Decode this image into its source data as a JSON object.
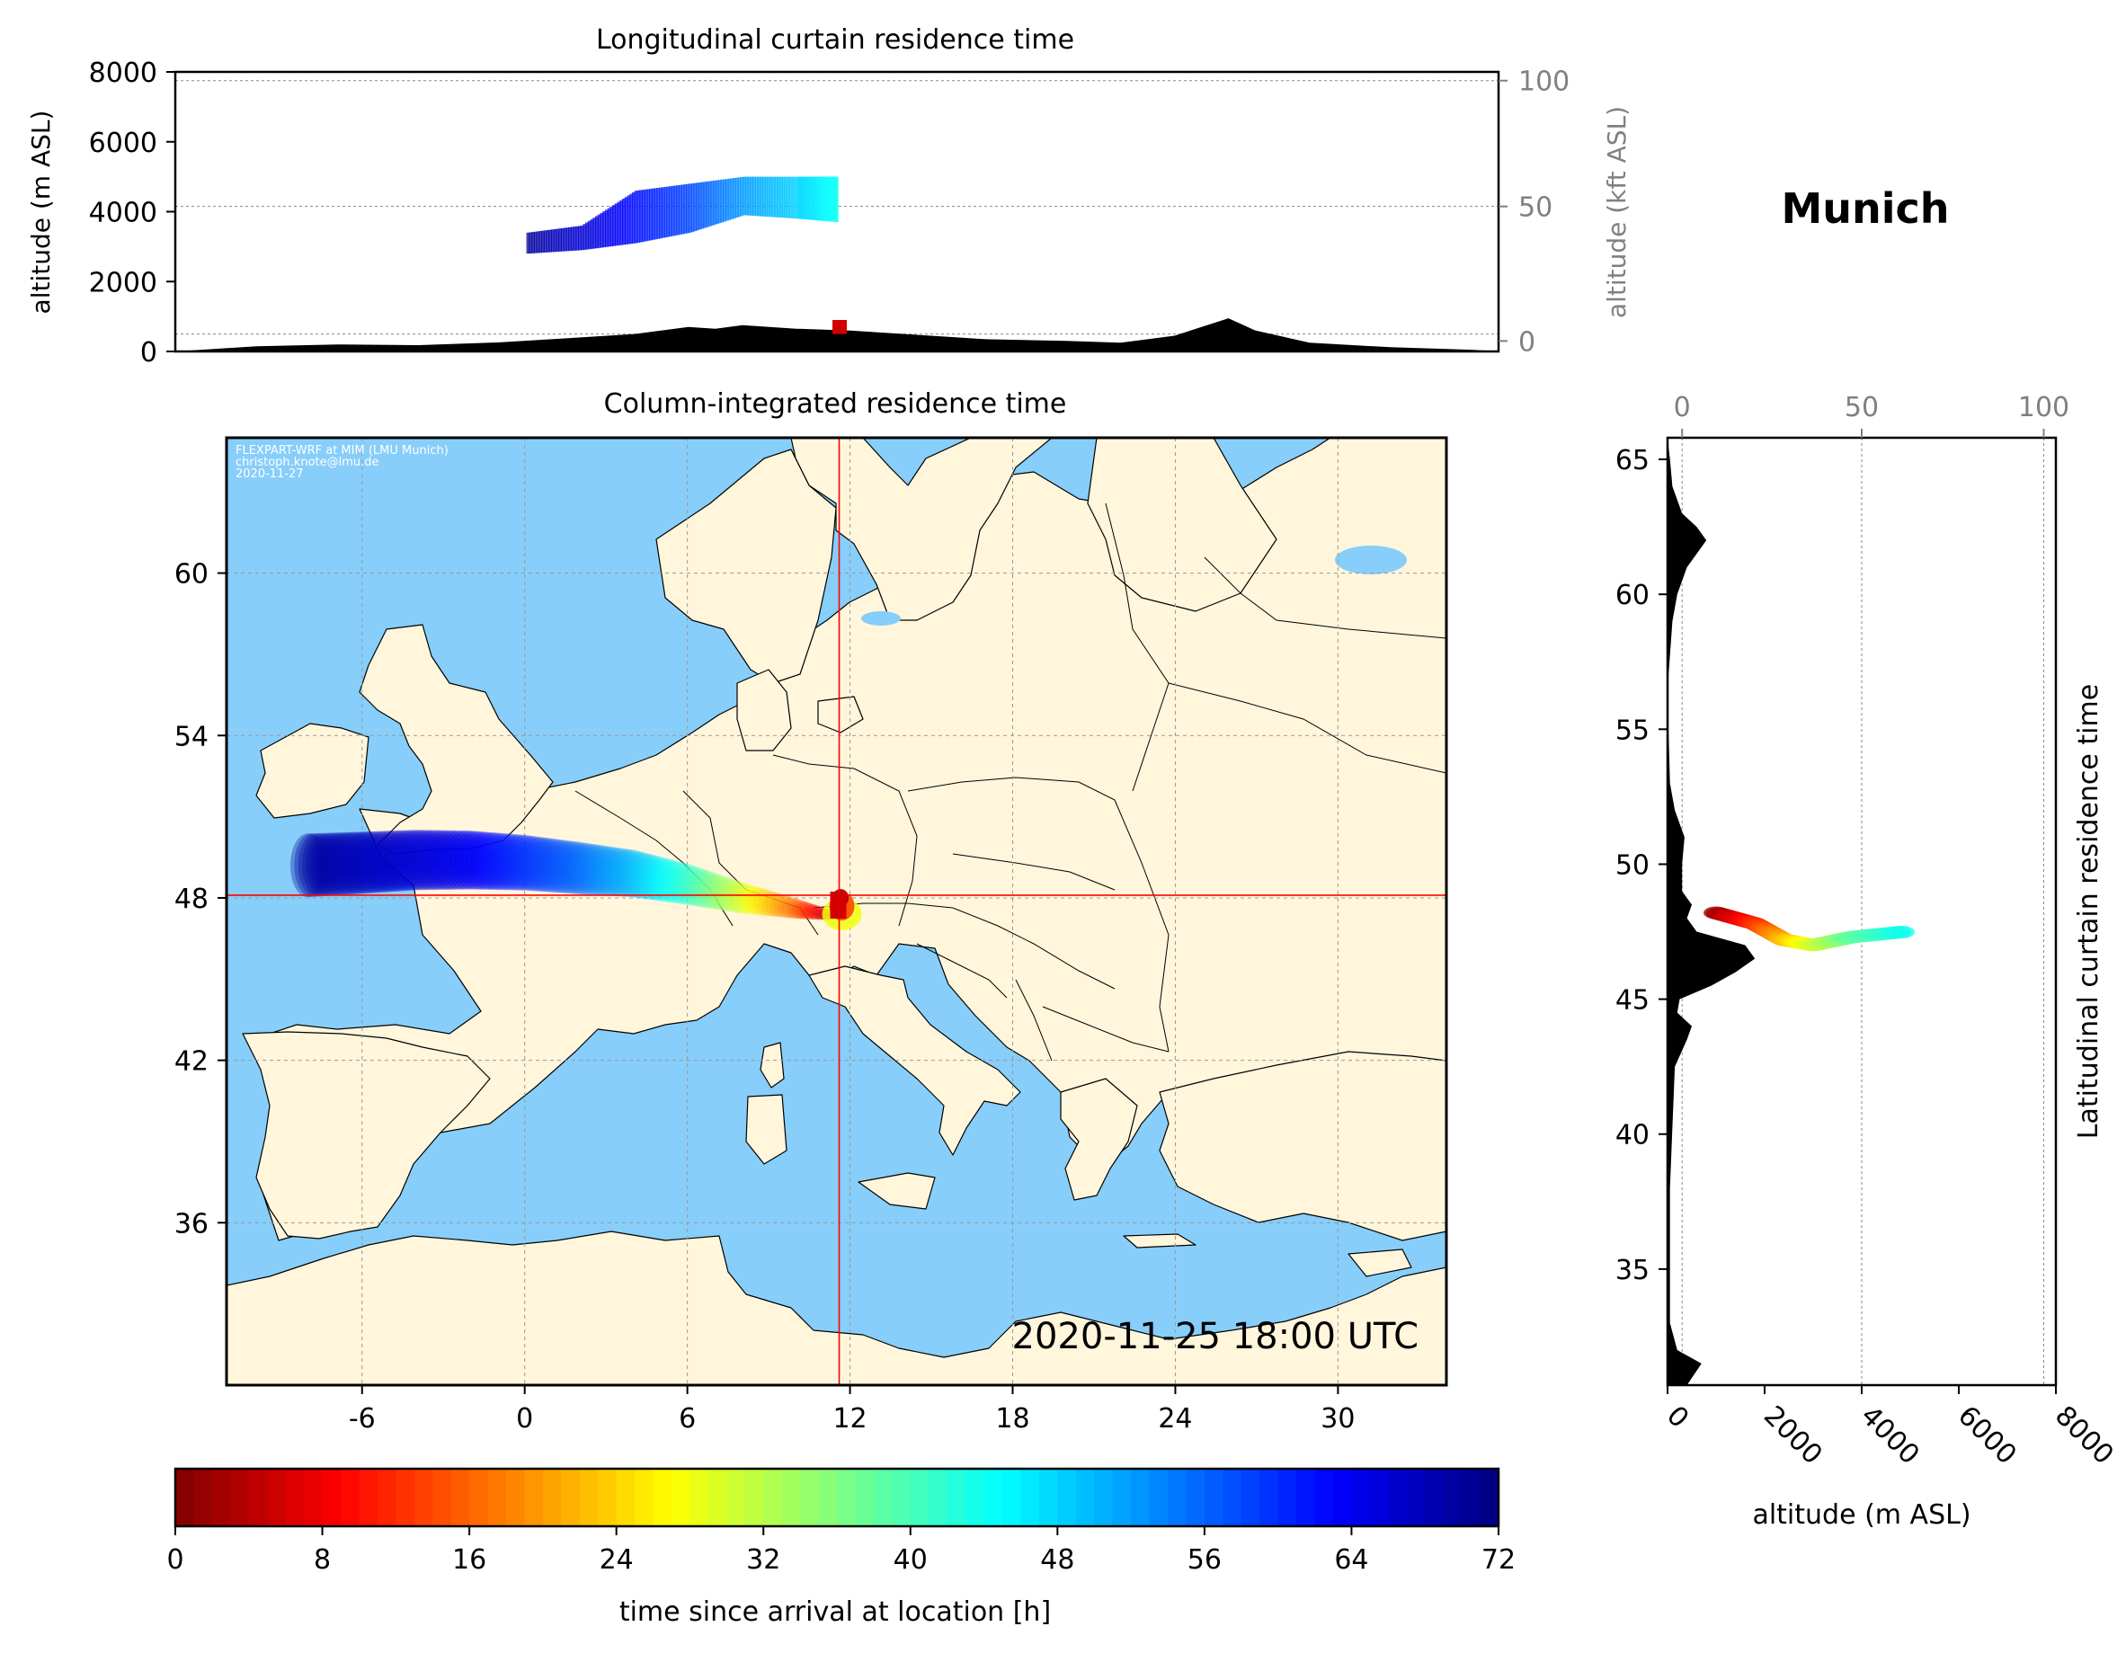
{
  "location_title": "Munich",
  "timestamp": "2020-11-25 18:00 UTC",
  "credits": [
    "FLEXPART-WRF at MIM (LMU Munich)",
    "christoph.knote@lmu.de",
    "2020-11-27"
  ],
  "colors": {
    "ocean": "#87CEFA",
    "land": "#FFF6DC",
    "terrain": "#000000",
    "crosshair": "#FF0000",
    "secondary_axis": "#808080"
  },
  "colormap": "jet (reversed)",
  "chart_data": [
    {
      "id": "longitudinal",
      "type": "area",
      "title": "Longitudinal curtain residence time",
      "ylabel": "altitude (m ASL)",
      "ylabel_right": "altitude (kft ASL)",
      "ylim": [
        0,
        8000
      ],
      "yticks": [
        "0",
        "2000",
        "4000",
        "6000",
        "8000"
      ],
      "yticks_right": [
        "0",
        "50",
        "100"
      ],
      "grid": true,
      "terrain_profile": {
        "lon": [
          -13,
          -10,
          -7,
          -4,
          -1,
          2,
          4,
          6,
          7,
          8,
          10,
          12,
          14,
          17,
          20,
          22,
          24,
          25,
          26,
          27,
          29,
          32,
          35
        ],
        "alt_m": [
          0,
          150,
          200,
          180,
          260,
          400,
          500,
          700,
          650,
          750,
          650,
          600,
          500,
          350,
          300,
          250,
          450,
          700,
          950,
          600,
          250,
          120,
          50
        ]
      },
      "plume": {
        "lon": [
          0,
          2,
          4,
          6,
          8,
          10,
          11.5
        ],
        "alt_low_m": [
          2800,
          2900,
          3100,
          3400,
          3900,
          3800,
          3700
        ],
        "alt_high_m": [
          3400,
          3600,
          4600,
          4800,
          5000,
          5000,
          5000
        ],
        "hours": [
          70,
          66,
          62,
          58,
          52,
          48,
          44
        ]
      },
      "arrival": {
        "lon": 11.6,
        "alt_m": 500
      }
    },
    {
      "id": "map",
      "type": "scatter",
      "title": "Column-integrated residence time",
      "xticks": [
        "-6",
        "0",
        "6",
        "12",
        "18",
        "24",
        "30"
      ],
      "yticks": [
        "36",
        "42",
        "48",
        "54",
        "60"
      ],
      "xlim": [
        -11,
        34
      ],
      "ylim": [
        30,
        65
      ],
      "grid": true,
      "release": {
        "lon": 11.6,
        "lat": 48.1
      },
      "trajectory": {
        "lon": [
          11.6,
          10,
          8,
          6,
          4,
          2,
          0,
          -2,
          -4,
          -6,
          -8
        ],
        "lat": [
          47.3,
          47.6,
          48.0,
          48.5,
          48.9,
          49.1,
          49.3,
          49.4,
          49.4,
          49.3,
          49.2
        ],
        "hours": [
          0,
          16,
          30,
          42,
          50,
          56,
          60,
          64,
          66,
          68,
          70
        ]
      }
    },
    {
      "id": "latitudinal",
      "type": "area",
      "title": "Latitudinal curtain residence time",
      "xlabel": "altitude (m ASL)",
      "xticks": [
        "0",
        "2000",
        "4000",
        "6000",
        "8000"
      ],
      "xticks_top": [
        "0",
        "50",
        "100"
      ],
      "yticks": [
        "35",
        "40",
        "45",
        "50",
        "55",
        "60",
        "65"
      ],
      "ylim": [
        30.7,
        65.8
      ],
      "grid": true,
      "terrain_profile": {
        "lat": [
          30.7,
          31.5,
          32,
          33,
          38,
          42.5,
          43.5,
          44,
          44.5,
          45,
          45.5,
          46,
          46.5,
          47,
          47.5,
          48,
          48.5,
          49,
          50,
          51,
          52,
          53,
          55,
          57,
          59,
          60,
          61,
          62,
          62.5,
          63,
          64,
          65,
          65.8
        ],
        "alt_m": [
          400,
          700,
          200,
          50,
          50,
          150,
          400,
          500,
          200,
          250,
          900,
          1400,
          1800,
          1600,
          600,
          400,
          500,
          300,
          300,
          350,
          150,
          50,
          20,
          20,
          100,
          200,
          400,
          800,
          600,
          300,
          100,
          50,
          0
        ]
      },
      "plume": {
        "lat": [
          48.2,
          47.8,
          47.2,
          47.0,
          47.3,
          47.5
        ],
        "alt_m": [
          1000,
          1800,
          2400,
          3000,
          3800,
          4900
        ],
        "hours": [
          2,
          12,
          22,
          30,
          38,
          44
        ]
      }
    },
    {
      "id": "colorbar",
      "type": "heatmap",
      "label": "time since arrival at location [h]",
      "range": [
        0,
        72
      ],
      "ticks": [
        "0",
        "8",
        "16",
        "24",
        "32",
        "40",
        "48",
        "56",
        "64",
        "72"
      ]
    }
  ]
}
